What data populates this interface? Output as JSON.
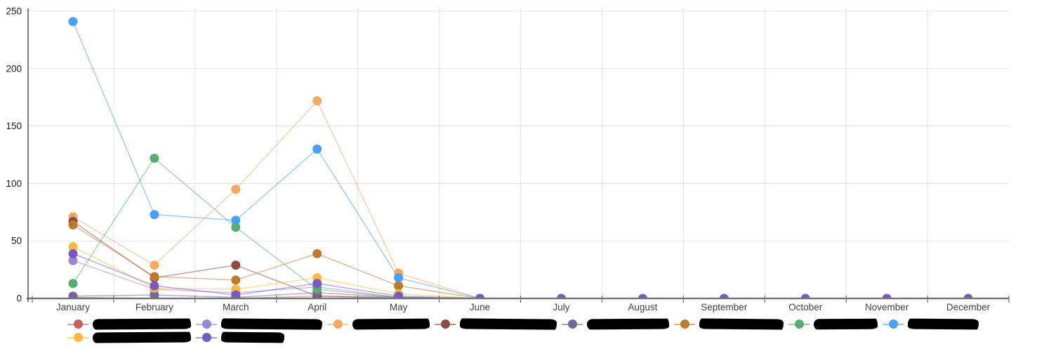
{
  "chart_data": {
    "type": "line",
    "title": "",
    "xlabel": "",
    "ylabel": "",
    "ylim": [
      0,
      250
    ],
    "y_ticks": [
      0,
      50,
      100,
      150,
      200,
      250
    ],
    "grid": true,
    "legend_position": "bottom",
    "legend_labels_redacted": true,
    "categories": [
      "January",
      "February",
      "March",
      "April",
      "May",
      "June",
      "July",
      "August",
      "September",
      "October",
      "November",
      "December"
    ],
    "series": [
      {
        "name": "[REDACTED]",
        "color": "#c4625c",
        "legend_row": 1,
        "redaction_width": 140,
        "values": [
          1,
          0,
          0,
          2,
          0,
          0,
          null,
          null,
          null,
          null,
          null,
          null
        ]
      },
      {
        "name": "[REDACTED]",
        "color": "#9b86d4",
        "legend_row": 1,
        "redaction_width": 144,
        "values": [
          33,
          8,
          5,
          10,
          1,
          0,
          null,
          null,
          null,
          null,
          null,
          null
        ]
      },
      {
        "name": "[REDACTED]",
        "color": "#f3a962",
        "legend_row": 1,
        "redaction_width": 110,
        "values": [
          71,
          29,
          95,
          172,
          22,
          0,
          null,
          null,
          null,
          null,
          null,
          null
        ]
      },
      {
        "name": "[REDACTED]",
        "color": "#8e4b42",
        "legend_row": 1,
        "redaction_width": 138,
        "values": [
          67,
          18,
          29,
          2,
          1,
          0,
          null,
          null,
          null,
          null,
          null,
          null
        ]
      },
      {
        "name": "[REDACTED]",
        "color": "#75659a",
        "legend_row": 1,
        "redaction_width": 117,
        "values": [
          2,
          3,
          1,
          5,
          1,
          0,
          null,
          null,
          null,
          null,
          null,
          null
        ]
      },
      {
        "name": "[REDACTED]",
        "color": "#bc7c2f",
        "legend_row": 1,
        "redaction_width": 120,
        "values": [
          64,
          19,
          16,
          39,
          11,
          0,
          null,
          null,
          null,
          null,
          null,
          null
        ]
      },
      {
        "name": "[REDACTED]",
        "color": "#57ad72",
        "legend_row": 1,
        "redaction_width": 91,
        "values": [
          13,
          122,
          62,
          8,
          1,
          0,
          null,
          null,
          null,
          null,
          null,
          null
        ]
      },
      {
        "name": "[REDACTED]",
        "color": "#4b9ff2",
        "legend_row": 1,
        "redaction_width": 101,
        "values": [
          241,
          73,
          68,
          130,
          18,
          0,
          null,
          null,
          null,
          null,
          null,
          null
        ]
      },
      {
        "name": "[REDACTED]",
        "color": "#f7bb3d",
        "legend_row": 2,
        "redaction_width": 140,
        "values": [
          45,
          9,
          8,
          18,
          4,
          0,
          null,
          null,
          null,
          null,
          null,
          null
        ]
      },
      {
        "name": "[REDACTED]",
        "color": "#7a58c1",
        "legend_row": 2,
        "redaction_width": 90,
        "values": [
          39,
          11,
          3,
          13,
          2,
          0,
          0,
          0,
          0,
          0,
          0,
          0
        ]
      }
    ],
    "colors": {
      "grid_line": "#e3e3e3",
      "axis_line": "#787878",
      "y_axis_line": "#555555",
      "tick_mark": "#555555",
      "y_label_text": "#1a1a1a",
      "x_label_text": "#3f3f46",
      "redaction": "#000000"
    }
  }
}
